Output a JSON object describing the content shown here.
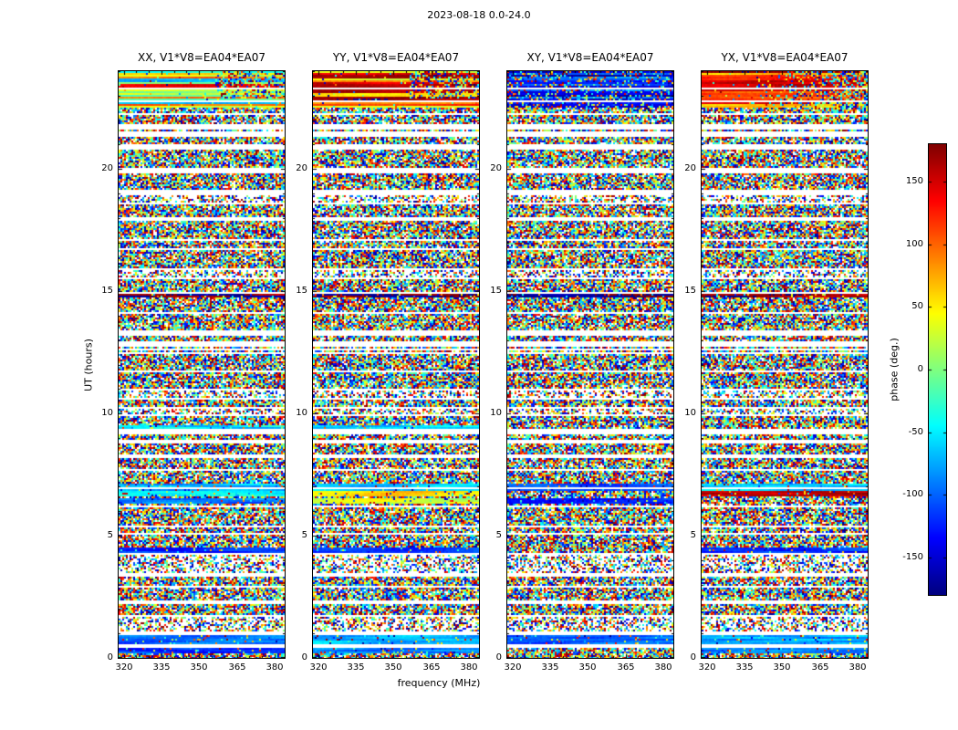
{
  "chart_data": {
    "type": "heatmap",
    "title": "2023-08-18 0.0-24.0",
    "xlabel": "frequency (MHz)",
    "ylabel": "UT (hours)",
    "xlim": [
      318,
      384
    ],
    "ylim": [
      0,
      24
    ],
    "xticks": [
      320,
      335,
      350,
      365,
      380
    ],
    "xtick_minor_step": 5,
    "yticks": [
      0,
      5,
      10,
      15,
      20
    ],
    "ytick_minor_step": 1,
    "panels": [
      {
        "pol": "XX",
        "title": "XX, V1*V8=EA04*EA07"
      },
      {
        "pol": "YY",
        "title": "YY, V1*V8=EA04*EA07"
      },
      {
        "pol": "XY",
        "title": "XY, V1*V8=EA04*EA07"
      },
      {
        "pol": "YX",
        "title": "YX, V1*V8=EA04*EA07"
      }
    ],
    "colorbar": {
      "label": "phase (deg.)",
      "ticks": [
        150,
        100,
        50,
        0,
        -50,
        -100,
        -150
      ],
      "vmin": -180,
      "vmax": 180,
      "colormap": "jet"
    },
    "content_description": "Visibility phase waterfall for baseline V1*V8=EA04*EA07 versus frequency (MHz) and UT (hours). Mostly random-phase speckle noise in horizontal time blocks separated by thin white data gaps; coherent smooth-phase bands near 22.5-24h UT (strong red/orange in YY and YX, green/yellow/red in XX, dark blue in XY, speckled at upper right), and coherent rows near 14.8h, 9.4h, 6.3-7.1h, 4.3h and 0.2-1.0h.",
    "seed": 20230818
  }
}
